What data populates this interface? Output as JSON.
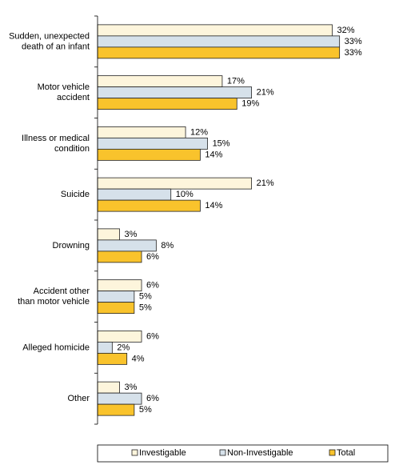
{
  "chart_data": {
    "type": "bar",
    "orientation": "horizontal",
    "categories": [
      [
        "Sudden, unexpected",
        "death of an infant"
      ],
      [
        "Motor vehicle",
        "accident"
      ],
      [
        "Illness or medical",
        "condition"
      ],
      [
        "Suicide"
      ],
      [
        "Drowning"
      ],
      [
        "Accident other",
        "than motor vehicle"
      ],
      [
        "Alleged homicide"
      ],
      [
        "Other"
      ]
    ],
    "series": [
      {
        "name": "Investigable",
        "color": "#fdf5dc",
        "values": [
          32,
          17,
          12,
          21,
          3,
          6,
          6,
          3
        ],
        "value_labels": [
          "32%",
          "17%",
          "12%",
          "21%",
          "3%",
          "6%",
          "6%",
          "3%"
        ]
      },
      {
        "name": "Non-Investigable",
        "color": "#d6e1ea",
        "values": [
          33,
          21,
          15,
          10,
          8,
          5,
          2,
          6
        ],
        "value_labels": [
          "33%",
          "21%",
          "15%",
          "10%",
          "8%",
          "5%",
          "2%",
          "6%"
        ]
      },
      {
        "name": "Total",
        "color": "#f9c32c",
        "values": [
          33,
          19,
          14,
          14,
          6,
          5,
          4,
          5
        ],
        "value_labels": [
          "33%",
          "19%",
          "14%",
          "14%",
          "6%",
          "5%",
          "4%",
          "5%"
        ]
      }
    ],
    "xlim": [
      0,
      35
    ],
    "legend": "bottom"
  }
}
